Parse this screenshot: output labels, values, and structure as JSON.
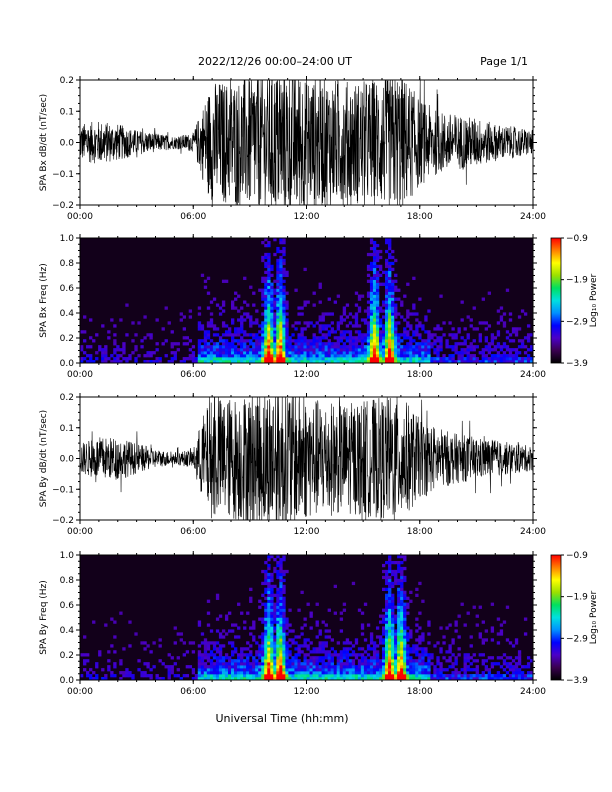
{
  "header": {
    "title": "2022/12/26  00:00–24:00 UT",
    "page": "Page 1/1"
  },
  "footer": {
    "xlabel": "Universal Time (hh:mm)"
  },
  "colors": {
    "waveform": "#000000",
    "background_dark": "#12001a",
    "colormap": [
      "#000000",
      "#3a0050",
      "#4b00c8",
      "#0000ff",
      "#0090ff",
      "#00e0e0",
      "#00e060",
      "#9ae000",
      "#ffff00",
      "#ff8000",
      "#ff0000"
    ]
  },
  "chart_data": [
    {
      "type": "line",
      "ylabel": "SPA Bx dB/dt (nT/sec)",
      "ylim": [
        -0.2,
        0.2
      ],
      "yticks": [
        "0.2",
        "0.1",
        "0.0",
        "−0.1",
        "−0.2"
      ],
      "xticks": [
        "00:00",
        "06:00",
        "12:00",
        "18:00",
        "24:00"
      ],
      "xlim_hours": [
        0,
        24
      ],
      "envelope": {
        "hours": [
          0,
          1,
          2,
          3,
          4,
          5,
          6,
          6.5,
          7,
          8,
          9,
          10,
          11,
          12,
          13,
          14,
          15,
          16,
          17,
          18,
          19,
          20,
          21,
          22,
          23,
          24
        ],
        "amplitude": [
          0.06,
          0.07,
          0.06,
          0.04,
          0.03,
          0.02,
          0.03,
          0.12,
          0.2,
          0.2,
          0.22,
          0.24,
          0.25,
          0.22,
          0.21,
          0.2,
          0.2,
          0.21,
          0.23,
          0.14,
          0.1,
          0.09,
          0.08,
          0.06,
          0.05,
          0.04
        ]
      }
    },
    {
      "type": "heatmap",
      "ylabel": "SPA Bx Freq (Hz)",
      "ylim": [
        0,
        1.0
      ],
      "yticks": [
        "1.0",
        "0.8",
        "0.6",
        "0.4",
        "0.2",
        "0.0"
      ],
      "xticks": [
        "00:00",
        "06:00",
        "12:00",
        "18:00",
        "24:00"
      ],
      "colorbar": {
        "label": "Log₁₀ Power",
        "ticks": [
          "−0.9",
          "−1.9",
          "−2.9",
          "−3.9"
        ],
        "range": [
          -3.9,
          -0.9
        ]
      },
      "hotspots_hours": [
        10.0,
        10.6,
        15.6,
        16.4
      ]
    },
    {
      "type": "line",
      "ylabel": "SPA By dB/dt (nT/sec)",
      "ylim": [
        -0.2,
        0.2
      ],
      "yticks": [
        "0.2",
        "0.1",
        "0.0",
        "−0.1",
        "−0.2"
      ],
      "xticks": [
        "00:00",
        "06:00",
        "12:00",
        "18:00",
        "24:00"
      ],
      "xlim_hours": [
        0,
        24
      ],
      "envelope": {
        "hours": [
          0,
          1,
          2,
          3,
          4,
          5,
          6,
          6.5,
          7,
          8,
          9,
          10,
          11,
          12,
          13,
          14,
          15,
          16,
          17,
          18,
          19,
          20,
          21,
          22,
          23,
          24
        ],
        "amplitude": [
          0.05,
          0.07,
          0.07,
          0.05,
          0.03,
          0.02,
          0.03,
          0.14,
          0.2,
          0.2,
          0.22,
          0.24,
          0.25,
          0.2,
          0.19,
          0.18,
          0.19,
          0.2,
          0.21,
          0.13,
          0.1,
          0.08,
          0.07,
          0.06,
          0.05,
          0.04
        ]
      }
    },
    {
      "type": "heatmap",
      "ylabel": "SPA By Freq (Hz)",
      "ylim": [
        0,
        1.0
      ],
      "yticks": [
        "1.0",
        "0.8",
        "0.6",
        "0.4",
        "0.2",
        "0.0"
      ],
      "xticks": [
        "00:00",
        "06:00",
        "12:00",
        "18:00",
        "24:00"
      ],
      "colorbar": {
        "label": "Log₁₀ Power",
        "ticks": [
          "−0.9",
          "−1.9",
          "−2.9",
          "−3.9"
        ],
        "range": [
          -3.9,
          -0.9
        ]
      },
      "hotspots_hours": [
        10.0,
        10.6,
        16.4,
        17.0
      ]
    }
  ]
}
